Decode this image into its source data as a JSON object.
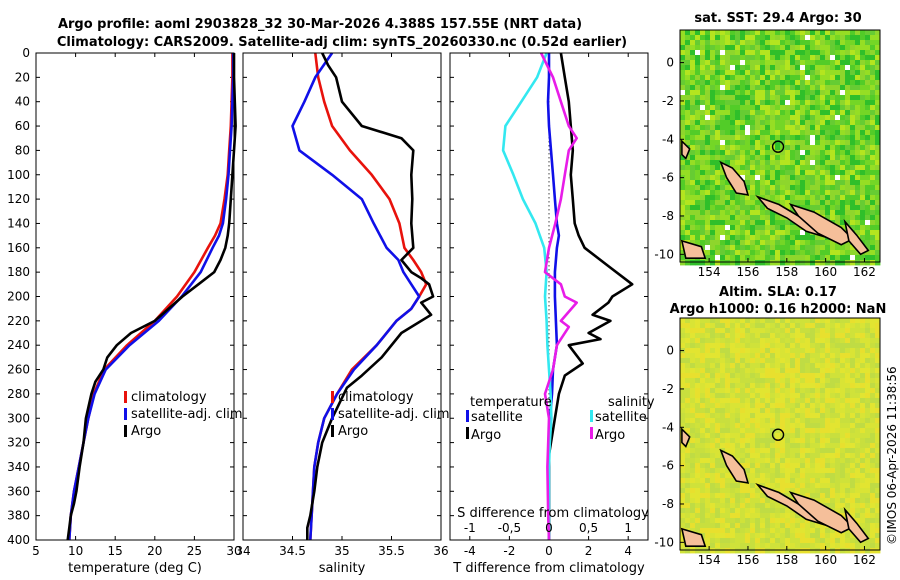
{
  "title": {
    "line1": "Argo profile: aoml 2903828_32 30-Mar-2026 4.388S 157.55E (NRT data)",
    "line2": "Climatology: CARS2009. Satellite-adj clim: synTS_20260330.nc (0.52d earlier)"
  },
  "depth_ticks": [
    0,
    20,
    40,
    60,
    80,
    100,
    120,
    140,
    160,
    180,
    200,
    220,
    240,
    260,
    280,
    300,
    320,
    340,
    360,
    380,
    400
  ],
  "colors": {
    "climatology": "#e8120c",
    "satellite": "#1010e8",
    "argo": "#000000",
    "sal_satellite": "#33e8f0",
    "sal_argo": "#e81ce8"
  },
  "chart_data": [
    {
      "type": "line",
      "panel": "temperature",
      "xlabel": "temperature (deg C)",
      "ylabel": "depth",
      "xlim": [
        5,
        30
      ],
      "ylim": [
        400,
        0
      ],
      "xticks": [
        5,
        10,
        15,
        20,
        25,
        30
      ],
      "series": [
        {
          "name": "climatology",
          "x": [
            29.8,
            29.8,
            29.7,
            29.6,
            29.4,
            29.2,
            28.8,
            28.3,
            27.6,
            26.7,
            25.0,
            22.8,
            20.0,
            16.5,
            13.6,
            12.3,
            11.6,
            11.0,
            10.4,
            9.8,
            9.4,
            9.2
          ],
          "y": [
            0,
            20,
            40,
            60,
            80,
            100,
            120,
            140,
            150,
            160,
            180,
            200,
            220,
            240,
            260,
            280,
            300,
            320,
            340,
            360,
            380,
            400
          ]
        },
        {
          "name": "satellite-adj. clim",
          "x": [
            29.9,
            29.9,
            29.8,
            29.7,
            29.5,
            29.3,
            29.0,
            28.6,
            28.1,
            27.3,
            25.8,
            23.4,
            20.5,
            16.8,
            13.8,
            12.4,
            11.6,
            11.0,
            10.4,
            9.8,
            9.4,
            9.2
          ],
          "y": [
            0,
            20,
            40,
            60,
            80,
            100,
            120,
            140,
            150,
            160,
            180,
            200,
            220,
            240,
            260,
            280,
            300,
            320,
            340,
            360,
            380,
            400
          ]
        },
        {
          "name": "Argo",
          "x": [
            30.0,
            30.0,
            30.1,
            30.2,
            30.0,
            29.8,
            29.6,
            29.4,
            29.2,
            28.9,
            28.3,
            27.5,
            25.5,
            23.5,
            20.0,
            17.0,
            15.2,
            14.0,
            13.5,
            12.5,
            12.0,
            11.3,
            11.0,
            10.5,
            10.1,
            9.8,
            9.4,
            9.2,
            9.0
          ],
          "y": [
            0,
            20,
            40,
            60,
            80,
            100,
            120,
            140,
            150,
            160,
            170,
            180,
            190,
            200,
            220,
            230,
            240,
            250,
            260,
            270,
            280,
            300,
            320,
            340,
            360,
            370,
            380,
            390,
            400
          ]
        }
      ],
      "legend": [
        "climatology",
        "satellite-adj. clim",
        "Argo"
      ],
      "legend_position": "lower-right"
    },
    {
      "type": "line",
      "panel": "salinity",
      "xlabel": "salinity",
      "xlim": [
        34,
        36
      ],
      "ylim": [
        400,
        0
      ],
      "xticks": [
        34,
        34.5,
        35,
        35.5,
        36
      ],
      "xtick_labels": [
        "34",
        "34.5",
        "35",
        "35.5",
        "36"
      ],
      "series": [
        {
          "name": "climatology",
          "x": [
            34.73,
            34.76,
            34.82,
            34.9,
            35.08,
            35.3,
            35.48,
            35.58,
            35.63,
            35.72,
            35.8,
            35.85,
            35.78,
            35.7,
            35.55,
            35.35,
            35.1,
            34.95,
            34.82,
            34.76,
            34.72,
            34.7,
            34.68
          ],
          "y": [
            0,
            20,
            40,
            60,
            80,
            100,
            120,
            140,
            160,
            170,
            180,
            190,
            200,
            210,
            220,
            240,
            260,
            280,
            300,
            320,
            340,
            370,
            400
          ]
        },
        {
          "name": "satellite-adj. clim",
          "x": [
            34.9,
            34.73,
            34.62,
            34.5,
            34.57,
            34.9,
            35.2,
            35.32,
            35.45,
            35.57,
            35.62,
            35.7,
            35.78,
            35.7,
            35.55,
            35.35,
            35.12,
            34.95,
            34.82,
            34.76,
            34.72,
            34.7,
            34.68
          ],
          "y": [
            0,
            20,
            40,
            60,
            80,
            100,
            120,
            140,
            160,
            170,
            180,
            190,
            200,
            210,
            220,
            240,
            260,
            280,
            300,
            320,
            340,
            370,
            400
          ]
        },
        {
          "name": "Argo",
          "x": [
            34.8,
            34.86,
            34.94,
            35.0,
            35.2,
            35.6,
            35.72,
            35.7,
            35.71,
            35.7,
            35.72,
            35.6,
            35.7,
            35.8,
            35.88,
            35.92,
            35.8,
            35.9,
            35.6,
            35.4,
            35.2,
            35.05,
            34.9,
            34.8,
            34.75,
            34.72,
            34.68,
            34.65,
            34.65
          ],
          "y": [
            0,
            10,
            20,
            40,
            60,
            70,
            80,
            100,
            120,
            140,
            160,
            170,
            180,
            185,
            190,
            200,
            205,
            215,
            230,
            250,
            265,
            275,
            300,
            320,
            340,
            360,
            380,
            390,
            400
          ]
        }
      ],
      "legend": [
        "climatology",
        "satellite-adj. clim",
        "Argo"
      ],
      "legend_position": "lower-right"
    },
    {
      "type": "line",
      "panel": "difference",
      "xlabel": "T difference from climatology",
      "xlabel_top": "S difference from climatology",
      "xlim": [
        -5,
        5
      ],
      "ylim": [
        400,
        0
      ],
      "xticks": [
        -4,
        -2,
        0,
        2,
        4
      ],
      "xticks_top": [
        -1,
        -0.5,
        0,
        0.5,
        1
      ],
      "xtick_labels_top": [
        "-1",
        "-0,5",
        "0",
        "0,5",
        "1"
      ],
      "zero_line": 0,
      "series": [
        {
          "name": "temperature satellite",
          "axis": "T",
          "x": [
            0.0,
            0.0,
            -0.05,
            0.0,
            0.1,
            0.2,
            0.3,
            0.4,
            0.5,
            0.4,
            0.3,
            0.3,
            0.35,
            0.4,
            0.2,
            0.15,
            0.05,
            0.0,
            0.0,
            0.0,
            0.0,
            0.0
          ],
          "y": [
            0,
            20,
            40,
            60,
            80,
            100,
            120,
            140,
            150,
            160,
            180,
            200,
            220,
            240,
            260,
            280,
            300,
            320,
            340,
            360,
            380,
            400
          ]
        },
        {
          "name": "temperature Argo",
          "axis": "T",
          "x": [
            0.6,
            0.8,
            1.0,
            1.1,
            1.2,
            1.1,
            1.2,
            1.3,
            1.5,
            1.8,
            3.0,
            4.2,
            3.2,
            3.0,
            2.2,
            3.1,
            2.0,
            2.6,
            1.0,
            1.7,
            0.8,
            0.5,
            0.3,
            0.0,
            0.0,
            0.0,
            0.0
          ],
          "y": [
            0,
            20,
            40,
            60,
            80,
            100,
            120,
            140,
            150,
            160,
            175,
            190,
            200,
            205,
            215,
            220,
            230,
            235,
            240,
            255,
            265,
            280,
            300,
            330,
            360,
            380,
            400
          ]
        },
        {
          "name": "salinity satellite",
          "axis": "S",
          "x": [
            -0.03,
            -0.15,
            -0.35,
            -0.55,
            -0.58,
            -0.45,
            -0.33,
            -0.17,
            -0.06,
            -0.03,
            -0.05,
            -0.03,
            -0.02,
            0.0,
            0.02,
            0.03,
            0.01,
            0.0,
            0.0,
            0.0,
            0.0
          ],
          "y": [
            0,
            20,
            40,
            60,
            80,
            100,
            120,
            140,
            160,
            180,
            200,
            220,
            240,
            260,
            280,
            300,
            320,
            340,
            360,
            380,
            400
          ]
        },
        {
          "name": "salinity Argo",
          "axis": "S",
          "x": [
            -0.1,
            0.05,
            0.15,
            0.25,
            0.35,
            0.25,
            0.2,
            0.15,
            0.08,
            0.0,
            -0.05,
            0.15,
            0.2,
            0.35,
            0.15,
            0.25,
            0.1,
            0.05,
            -0.05,
            0.0,
            -0.02,
            -0.01,
            0.0
          ],
          "y": [
            0,
            20,
            40,
            60,
            70,
            80,
            100,
            120,
            140,
            160,
            180,
            190,
            200,
            205,
            220,
            225,
            240,
            260,
            280,
            300,
            340,
            380,
            400
          ]
        }
      ],
      "legend_groups": [
        {
          "heading": "temperature",
          "entries": [
            "satellite",
            "Argo"
          ]
        },
        {
          "heading": "salinity",
          "entries": [
            "satellite",
            "Argo"
          ]
        }
      ]
    }
  ],
  "maps": [
    {
      "title": "sat. SST: 29.4 Argo: 30",
      "xticks": [
        154,
        156,
        158,
        160,
        162
      ],
      "yticks": [
        0,
        -2,
        -4,
        -6,
        -8,
        -10
      ],
      "xlim": [
        152.5,
        162.8
      ],
      "ylim": [
        -10.4,
        1.7
      ],
      "marker": {
        "lon": 157.55,
        "lat": -4.388
      },
      "palette": [
        "#2fbf2a",
        "#52cc28",
        "#74d626",
        "#96de24",
        "#b4e51f",
        "#8ed62c",
        "#66cc33"
      ]
    },
    {
      "title_line1": "Altim. SLA: 0.17",
      "title_line2": "Argo h1000: 0.16 h2000: NaN",
      "xticks": [
        154,
        156,
        158,
        160,
        162
      ],
      "yticks": [
        0,
        -2,
        -4,
        -6,
        -8,
        -10
      ],
      "xlim": [
        152.5,
        162.8
      ],
      "ylim": [
        -10.4,
        1.7
      ],
      "marker": {
        "lon": 157.55,
        "lat": -4.388
      },
      "palette": [
        "#cfe23a",
        "#d9e435",
        "#e2e531",
        "#c8df3e",
        "#bfdc44",
        "#e8e02e"
      ]
    }
  ],
  "credit": "©IMOS 06-Apr-2026 11:38:56"
}
